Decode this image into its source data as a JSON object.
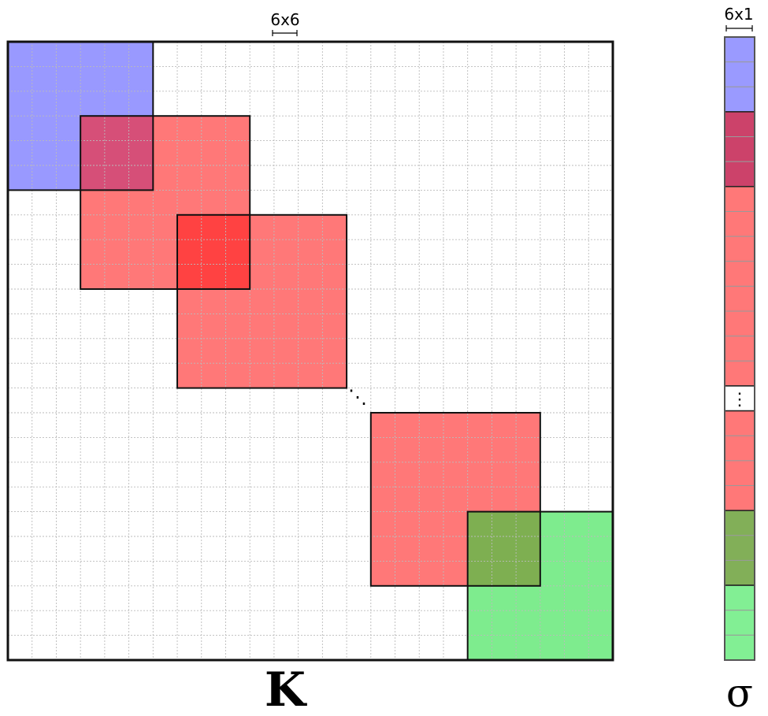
{
  "matrix": {
    "symbol": "K",
    "scale_label": "6x6",
    "grid_rows": 25,
    "grid_cols": 25,
    "colors": {
      "blue": "#9a9aff",
      "red": "#ff7878",
      "green": "#82ef94",
      "overlap_red_blue": "#cc426a",
      "overlap_red_green": "#82af58",
      "grid_line": "#bbbbbb",
      "border": "#111111"
    },
    "blocks": [
      {
        "id": "block-blue",
        "color": "blue",
        "row": 0,
        "col": 0,
        "size": 6
      },
      {
        "id": "block-red-1",
        "color": "red",
        "row": 3,
        "col": 3,
        "size": 7
      },
      {
        "id": "block-red-2",
        "color": "red",
        "row": 7,
        "col": 7,
        "size": 7
      },
      {
        "id": "block-red-n",
        "color": "red",
        "row": 15,
        "col": 15,
        "size": 7
      },
      {
        "id": "block-green",
        "color": "green",
        "row": 19,
        "col": 19,
        "size": 6
      }
    ],
    "ellipsis": "⋱"
  },
  "vector": {
    "symbol": "σ",
    "scale_label": "6x1",
    "segments": [
      {
        "color": "blue",
        "cells": 3
      },
      {
        "color": "overlap_red_blue",
        "cells": 3
      },
      {
        "color": "red",
        "cells": 8
      },
      {
        "color": "white",
        "cells": 1,
        "ellipsis": "⋮"
      },
      {
        "color": "red",
        "cells": 4
      },
      {
        "color": "overlap_red_green",
        "cells": 3
      },
      {
        "color": "green",
        "cells": 3
      }
    ]
  }
}
